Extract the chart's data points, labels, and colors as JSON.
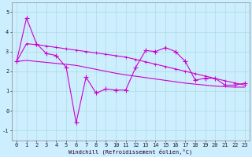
{
  "xlabel": "Windchill (Refroidissement éolien,°C)",
  "x": [
    0,
    1,
    2,
    3,
    4,
    5,
    6,
    7,
    8,
    9,
    10,
    11,
    12,
    13,
    14,
    15,
    16,
    17,
    18,
    19,
    20,
    21,
    22,
    23
  ],
  "y_actual": [
    2.5,
    4.7,
    3.4,
    2.9,
    2.8,
    2.2,
    -0.6,
    1.7,
    0.9,
    1.1,
    1.05,
    1.05,
    2.2,
    3.05,
    3.0,
    3.2,
    3.0,
    2.5,
    1.55,
    1.65,
    1.65,
    1.3,
    1.3,
    1.4
  ],
  "y_trend1": [
    2.5,
    3.4,
    3.35,
    3.28,
    3.21,
    3.14,
    3.07,
    3.0,
    2.93,
    2.86,
    2.79,
    2.72,
    2.6,
    2.48,
    2.36,
    2.24,
    2.12,
    2.0,
    1.88,
    1.76,
    1.64,
    1.52,
    1.41,
    1.3
  ],
  "y_trend2": [
    2.5,
    2.55,
    2.5,
    2.45,
    2.4,
    2.35,
    2.3,
    2.2,
    2.1,
    2.0,
    1.9,
    1.82,
    1.75,
    1.68,
    1.61,
    1.54,
    1.47,
    1.4,
    1.35,
    1.3,
    1.25,
    1.22,
    1.2,
    1.2
  ],
  "line_color": "#cc00cc",
  "bg_color": "#cceeff",
  "plot_bg": "#cceeff",
  "grid_color": "#aadddd",
  "ylim": [
    -1.5,
    5.5
  ],
  "yticks": [
    -1,
    0,
    1,
    2,
    3,
    4,
    5
  ],
  "markersize": 4,
  "linewidth": 0.8
}
